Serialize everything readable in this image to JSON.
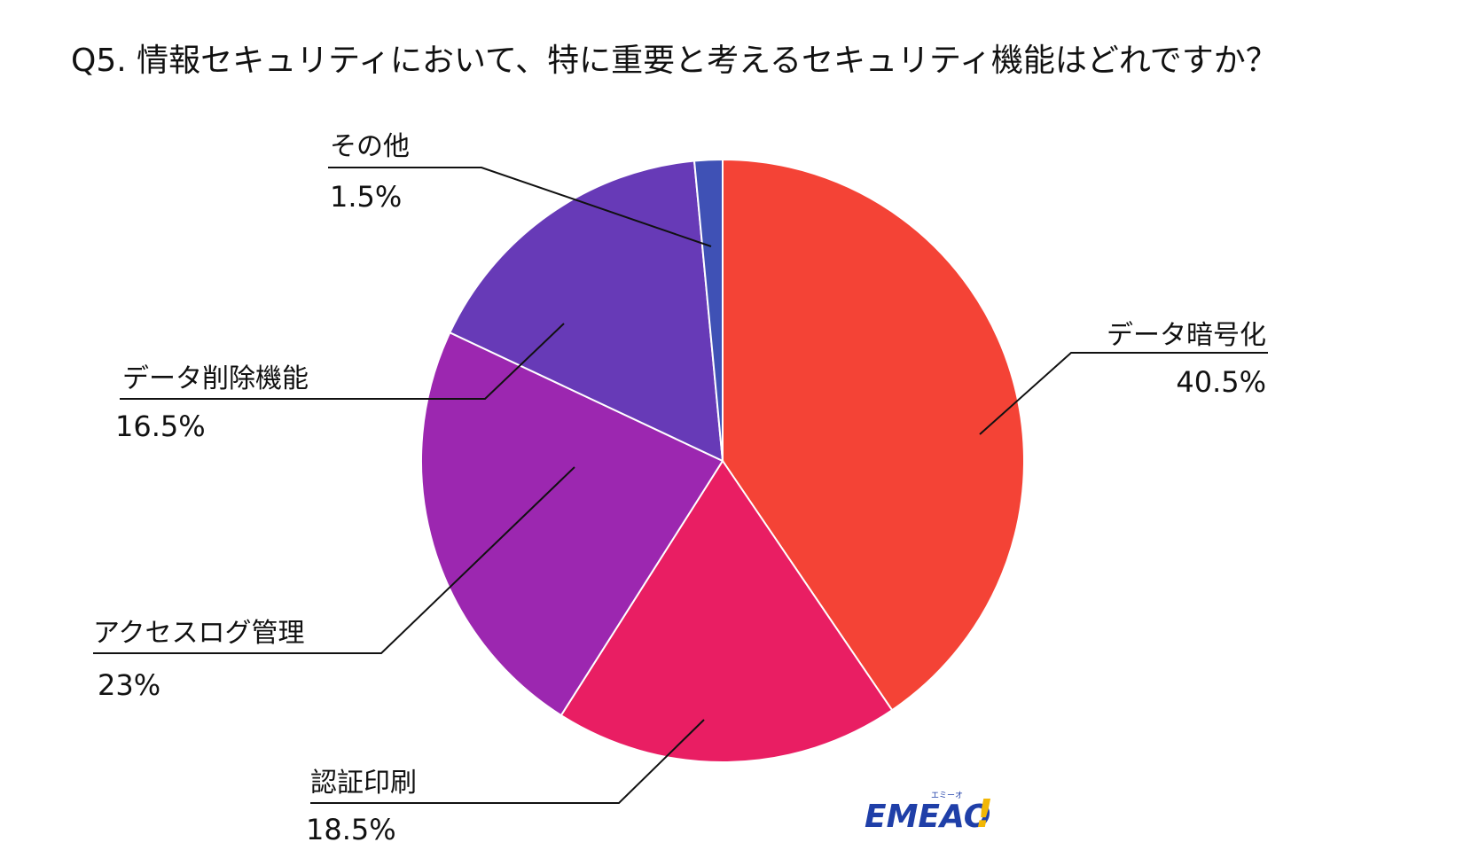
{
  "chart_data": {
    "type": "pie",
    "title": "Q5. 情報セキュリティにおいて、特に重要と考えるセキュリティ機能はどれですか？",
    "start": "12 o'clock, clockwise",
    "slices": [
      {
        "label": "データ暗号化",
        "value": 40.5,
        "value_label": "40.5%",
        "color": "#f44336"
      },
      {
        "label": "認証印刷",
        "value": 18.5,
        "value_label": "18.5%",
        "color": "#e91e63"
      },
      {
        "label": "アクセスログ管理",
        "value": 23,
        "value_label": "23%",
        "color": "#9c27b0"
      },
      {
        "label": "データ削除機能",
        "value": 16.5,
        "value_label": "16.5%",
        "color": "#673ab7"
      },
      {
        "label": "その他",
        "value": 1.5,
        "value_label": "1.5%",
        "color": "#3f51b5"
      }
    ]
  },
  "logo": {
    "text": "EMEAO",
    "mark": "!",
    "reading": "エミーオ",
    "colors": {
      "text": "#1f3fa8",
      "mark": "#f2b705"
    }
  }
}
